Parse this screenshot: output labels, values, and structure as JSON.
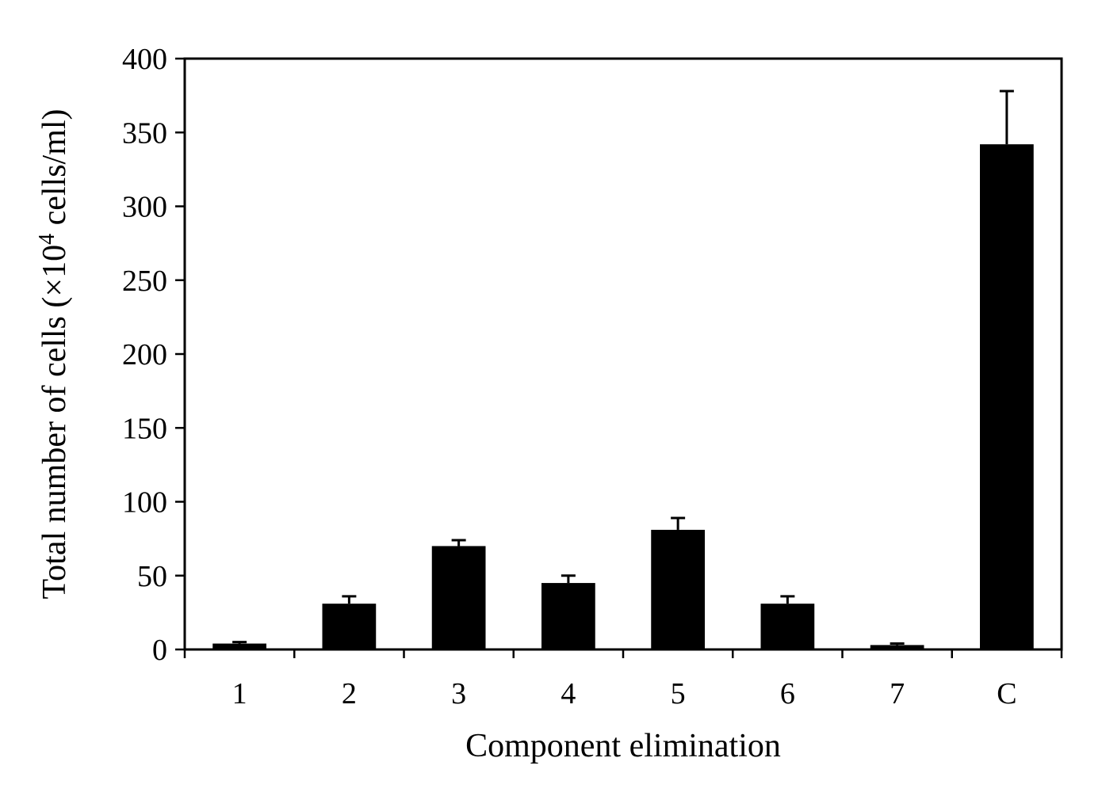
{
  "chart_data": {
    "type": "bar",
    "categories": [
      "1",
      "2",
      "3",
      "4",
      "5",
      "6",
      "7",
      "C"
    ],
    "values": [
      4,
      31,
      70,
      45,
      81,
      31,
      3,
      342
    ],
    "error": [
      1,
      5,
      4,
      5,
      8,
      5,
      1,
      36
    ],
    "xlabel": "Component elimination",
    "ylabel": {
      "prefix": "Total number of cells (×10",
      "superscript": "4",
      "suffix": " cells/ml)"
    },
    "ylim": [
      0,
      400
    ],
    "yticks": [
      0,
      50,
      100,
      150,
      200,
      250,
      300,
      350,
      400
    ],
    "grid": false,
    "legend": "none",
    "bar_color": "#000000"
  }
}
